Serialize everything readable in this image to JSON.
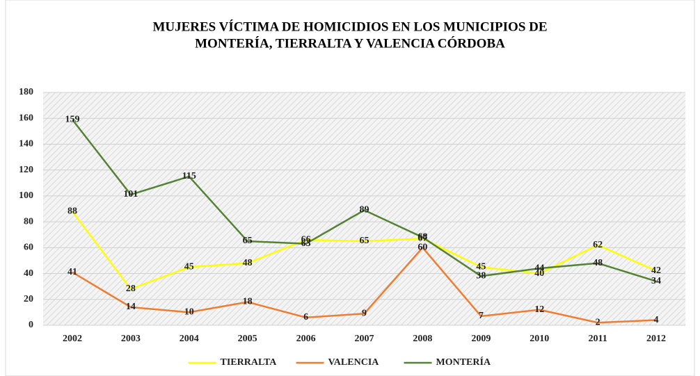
{
  "chart_data": {
    "type": "line",
    "title": [
      "MUJERES VÍCTIMA DE HOMICIDIOS EN LOS MUNICIPIOS DE",
      "MONTERÍA, TIERRALTA Y VALENCIA  CÓRDOBA"
    ],
    "categories": [
      "2002",
      "2003",
      "2004",
      "2005",
      "2006",
      "2007",
      "2008",
      "2009",
      "2010",
      "2011",
      "2012"
    ],
    "series": [
      {
        "name": "TIERRALTA",
        "color": "#ffff00",
        "values": [
          88,
          28,
          45,
          48,
          66,
          65,
          67,
          45,
          40,
          62,
          42
        ]
      },
      {
        "name": "VALENCIA",
        "color": "#ed7d31",
        "values": [
          41,
          14,
          10,
          18,
          6,
          9,
          60,
          7,
          12,
          2,
          4
        ]
      },
      {
        "name": "MONTERÍA",
        "color": "#548235",
        "values": [
          159,
          101,
          115,
          65,
          63,
          89,
          68,
          38,
          44,
          48,
          34
        ]
      }
    ],
    "ylim": [
      0,
      180
    ],
    "yticks": [
      0,
      20,
      40,
      60,
      80,
      100,
      120,
      140,
      160,
      180
    ],
    "grid": true,
    "legend": "bottom"
  }
}
